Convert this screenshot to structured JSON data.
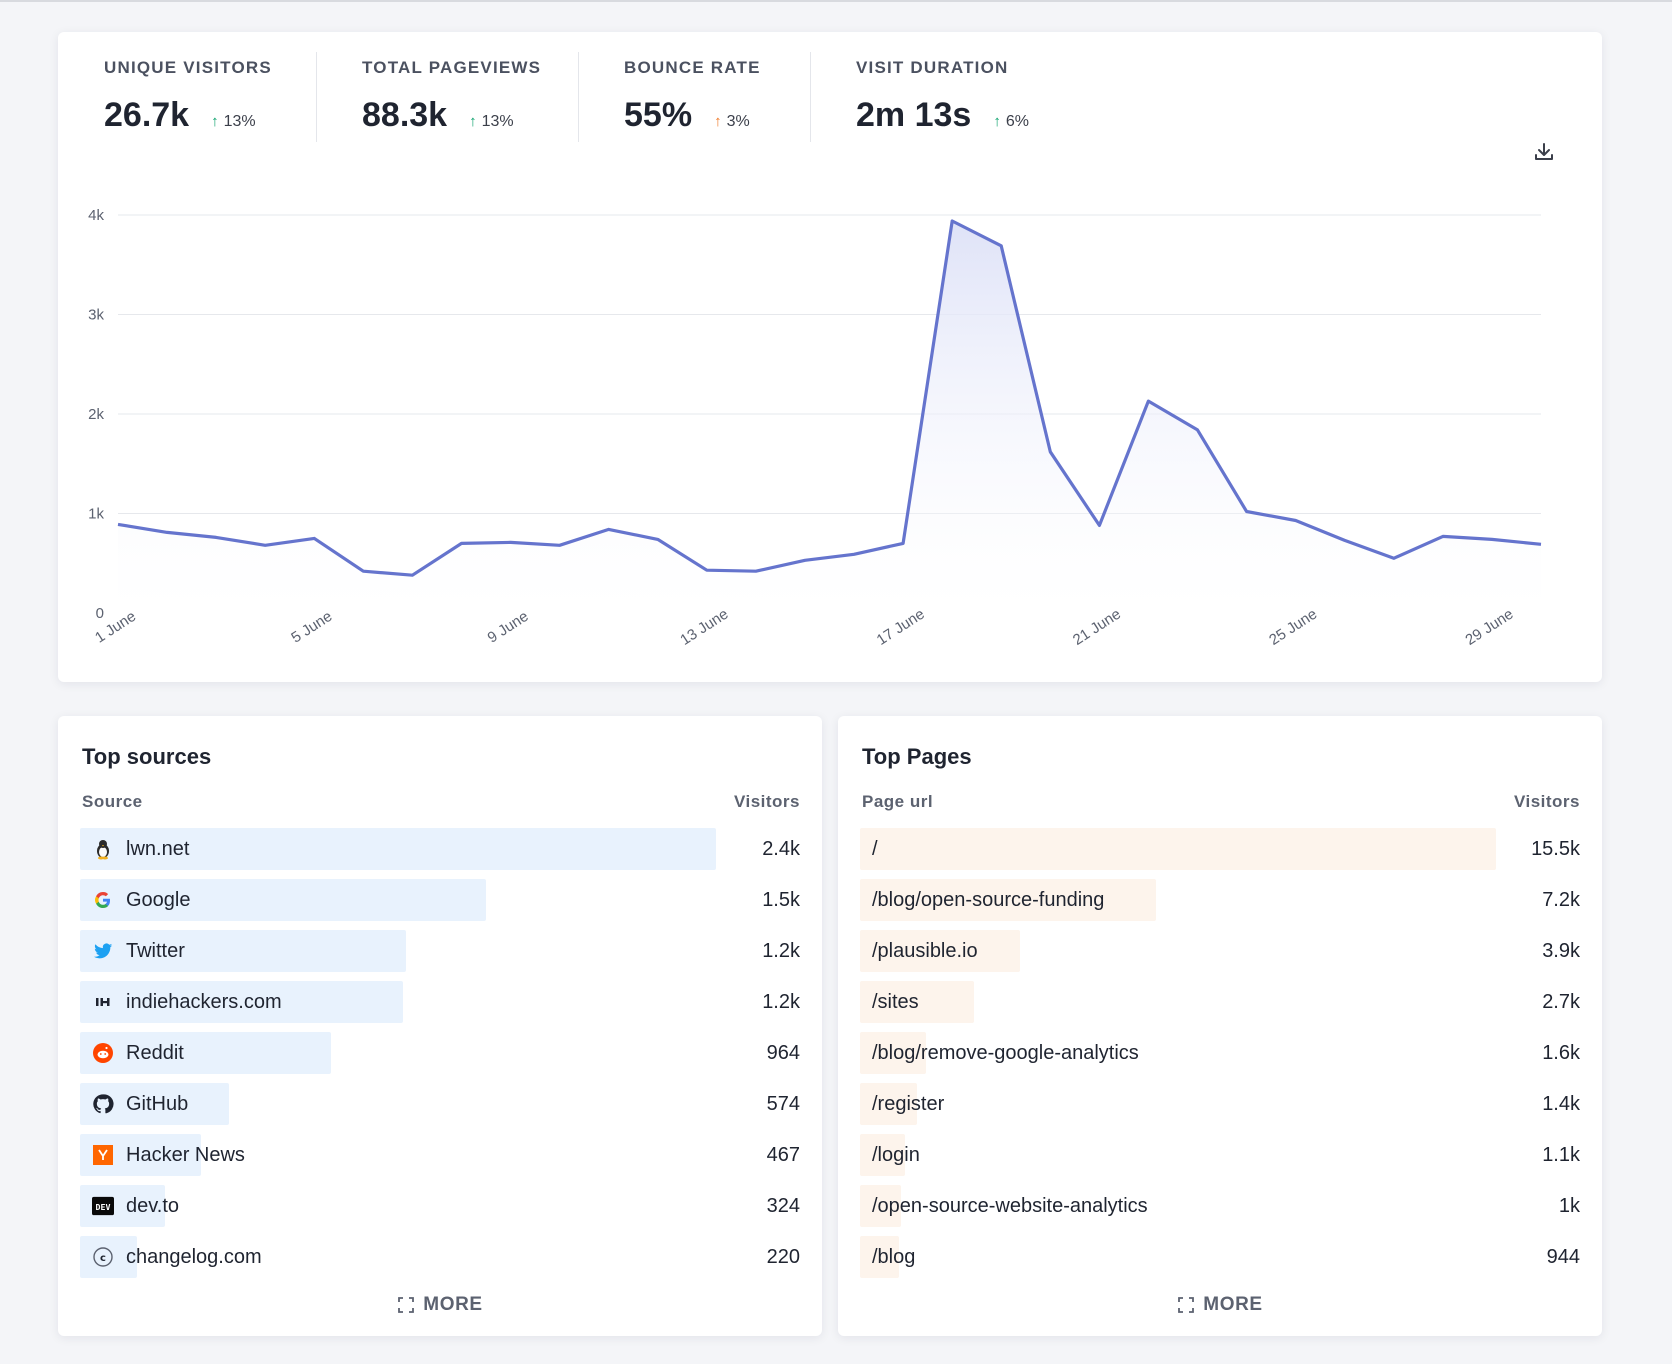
{
  "stats": [
    {
      "label": "Unique visitors",
      "value": "26.7k",
      "change": "13%",
      "arrow_color": "#10a36f"
    },
    {
      "label": "Total pageviews",
      "value": "88.3k",
      "change": "13%",
      "arrow_color": "#10a36f"
    },
    {
      "label": "Bounce rate",
      "value": "55%",
      "change": "3%",
      "arrow_color": "#f07a2a"
    },
    {
      "label": "Visit duration",
      "value": "2m 13s",
      "change": "6%",
      "arrow_color": "#10a36f"
    }
  ],
  "download_icon": "download-icon",
  "chart_data": {
    "type": "area",
    "title": "",
    "xlabel": "",
    "ylabel": "",
    "ylim": [
      0,
      4000
    ],
    "y_ticks": [
      "0",
      "1k",
      "2k",
      "3k",
      "4k"
    ],
    "x_tick_labels": [
      "1 June",
      "5 June",
      "9 June",
      "13 June",
      "17 June",
      "21 June",
      "25 June",
      "29 June"
    ],
    "x": [
      "1 June",
      "2 June",
      "3 June",
      "4 June",
      "5 June",
      "6 June",
      "7 June",
      "8 June",
      "9 June",
      "10 June",
      "11 June",
      "12 June",
      "13 June",
      "14 June",
      "15 June",
      "16 June",
      "17 June",
      "18 June",
      "19 June",
      "20 June",
      "21 June",
      "22 June",
      "23 June",
      "24 June",
      "25 June",
      "26 June",
      "27 June",
      "28 June",
      "29 June",
      "30 June"
    ],
    "series": [
      {
        "values": [
          890,
          810,
          760,
          680,
          750,
          420,
          380,
          700,
          710,
          680,
          840,
          740,
          430,
          420,
          530,
          590,
          700,
          3940,
          3690,
          1620,
          880,
          2130,
          1840,
          1020,
          930,
          730,
          550,
          770,
          740,
          690
        ]
      }
    ],
    "grid": true,
    "line_color": "#6574cd",
    "fill_color": "#eceefb"
  },
  "top_sources": {
    "title": "Top sources",
    "col_left": "Source",
    "col_right": "Visitors",
    "more": "MORE",
    "rows": [
      {
        "label": "lwn.net",
        "value": "2.4k",
        "fraction": 1.0,
        "icon": "tux-icon"
      },
      {
        "label": "Google",
        "value": "1.5k",
        "fraction": 0.638,
        "icon": "google-icon"
      },
      {
        "label": "Twitter",
        "value": "1.2k",
        "fraction": 0.512,
        "icon": "twitter-icon"
      },
      {
        "label": "indiehackers.com",
        "value": "1.2k",
        "fraction": 0.508,
        "icon": "indiehackers-icon"
      },
      {
        "label": "Reddit",
        "value": "964",
        "fraction": 0.395,
        "icon": "reddit-icon"
      },
      {
        "label": "GitHub",
        "value": "574",
        "fraction": 0.235,
        "icon": "github-icon"
      },
      {
        "label": "Hacker News",
        "value": "467",
        "fraction": 0.19,
        "icon": "hacker-news-icon"
      },
      {
        "label": "dev.to",
        "value": "324",
        "fraction": 0.133,
        "icon": "devto-icon"
      },
      {
        "label": "changelog.com",
        "value": "220",
        "fraction": 0.09,
        "icon": "changelog-icon"
      }
    ]
  },
  "top_pages": {
    "title": "Top Pages",
    "col_left": "Page url",
    "col_right": "Visitors",
    "more": "MORE",
    "rows": [
      {
        "label": "/",
        "value": "15.5k",
        "fraction": 1.0
      },
      {
        "label": "/blog/open-source-funding",
        "value": "7.2k",
        "fraction": 0.465
      },
      {
        "label": "/plausible.io",
        "value": "3.9k",
        "fraction": 0.252
      },
      {
        "label": "/sites",
        "value": "2.7k",
        "fraction": 0.179
      },
      {
        "label": "/blog/remove-google-analytics",
        "value": "1.6k",
        "fraction": 0.103
      },
      {
        "label": "/register",
        "value": "1.4k",
        "fraction": 0.09
      },
      {
        "label": "/login",
        "value": "1.1k",
        "fraction": 0.071
      },
      {
        "label": "/open-source-website-analytics",
        "value": "1k",
        "fraction": 0.065
      },
      {
        "label": "/blog",
        "value": "944",
        "fraction": 0.061
      }
    ]
  }
}
